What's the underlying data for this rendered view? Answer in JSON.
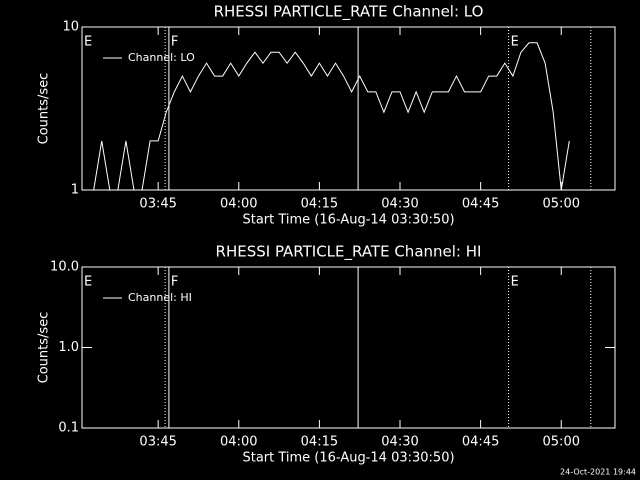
{
  "chart_data": [
    {
      "type": "line",
      "title": "RHESSI PARTICLE_RATE Channel: LO",
      "x_label": "Start Time (16-Aug-14 03:30:50)",
      "y_label": "Counts/sec",
      "log_y": true,
      "xlim": [
        0.83,
        100
      ],
      "ylim": [
        1,
        10
      ],
      "xticks": [
        {
          "value": 15,
          "label": "03:45"
        },
        {
          "value": 30,
          "label": "04:00"
        },
        {
          "value": 45,
          "label": "04:15"
        },
        {
          "value": 60,
          "label": "04:30"
        },
        {
          "value": 75,
          "label": "04:45"
        },
        {
          "value": 90,
          "label": "05:00"
        }
      ],
      "yticks": [
        1,
        10
      ],
      "x": [
        3,
        4.5,
        6,
        7.5,
        9,
        10.5,
        12,
        13.5,
        15,
        16.5,
        18,
        19.5,
        21,
        22.5,
        24,
        25.5,
        27,
        28.5,
        30,
        31.5,
        33,
        34.5,
        36,
        37.5,
        39,
        40.5,
        42,
        43.5,
        45,
        46.5,
        48,
        49.5,
        51,
        52.5,
        54,
        55.5,
        57,
        58.5,
        60,
        61.5,
        63,
        64.5,
        66,
        67.5,
        69,
        70.5,
        72,
        73.5,
        75,
        76.5,
        78,
        79.5,
        81,
        82.5,
        84,
        85.5,
        87,
        88.5,
        90,
        91.5
      ],
      "series": [
        {
          "name": "Channel: LO",
          "color": "#ffffff",
          "values": [
            1,
            2,
            1,
            1,
            2,
            1,
            1,
            2,
            2,
            3,
            4,
            5,
            4,
            5,
            6,
            5,
            5,
            6,
            5,
            6,
            7,
            6,
            7,
            7,
            6,
            7,
            6,
            5,
            6,
            5,
            6,
            5,
            4,
            5,
            4,
            4,
            3,
            4,
            4,
            3,
            4,
            3,
            4,
            4,
            4,
            5,
            4,
            4,
            4,
            5,
            5,
            6,
            5,
            7,
            8,
            8,
            6,
            3,
            1,
            2
          ]
        }
      ],
      "vlines": [
        {
          "x": 0.83,
          "style": "dotted",
          "label": "E"
        },
        {
          "x": 16.3,
          "style": "dotted"
        },
        {
          "x": 17,
          "style": "solid",
          "label": "F"
        },
        {
          "x": 52.2,
          "style": "solid"
        },
        {
          "x": 80.2,
          "style": "dotted",
          "label": "E"
        },
        {
          "x": 95.5,
          "style": "dotted"
        }
      ]
    },
    {
      "type": "line",
      "title": "RHESSI PARTICLE_RATE Channel: HI",
      "x_label": "Start Time (16-Aug-14 03:30:50)",
      "y_label": "Counts/sec",
      "log_y": true,
      "xlim": [
        0.83,
        100
      ],
      "ylim": [
        0.1,
        10
      ],
      "xticks": [
        {
          "value": 15,
          "label": "03:45"
        },
        {
          "value": 30,
          "label": "04:00"
        },
        {
          "value": 45,
          "label": "04:15"
        },
        {
          "value": 60,
          "label": "04:30"
        },
        {
          "value": 75,
          "label": "04:45"
        },
        {
          "value": 90,
          "label": "05:00"
        }
      ],
      "yticks": [
        0.1,
        {
          "value": 1,
          "label": "1.0"
        },
        {
          "value": 10,
          "label": "10.0"
        }
      ],
      "series": [
        {
          "name": "Channel: HI",
          "color": "#ffffff"
        }
      ],
      "vlines": [
        {
          "x": 0.83,
          "style": "dotted",
          "label": "E"
        },
        {
          "x": 16.3,
          "style": "dotted"
        },
        {
          "x": 17,
          "style": "solid",
          "label": "F"
        },
        {
          "x": 52.2,
          "style": "solid"
        },
        {
          "x": 80.2,
          "style": "dotted",
          "label": "E"
        },
        {
          "x": 95.5,
          "style": "dotted"
        }
      ]
    }
  ],
  "footer": "24-Oct-2021 19:44"
}
